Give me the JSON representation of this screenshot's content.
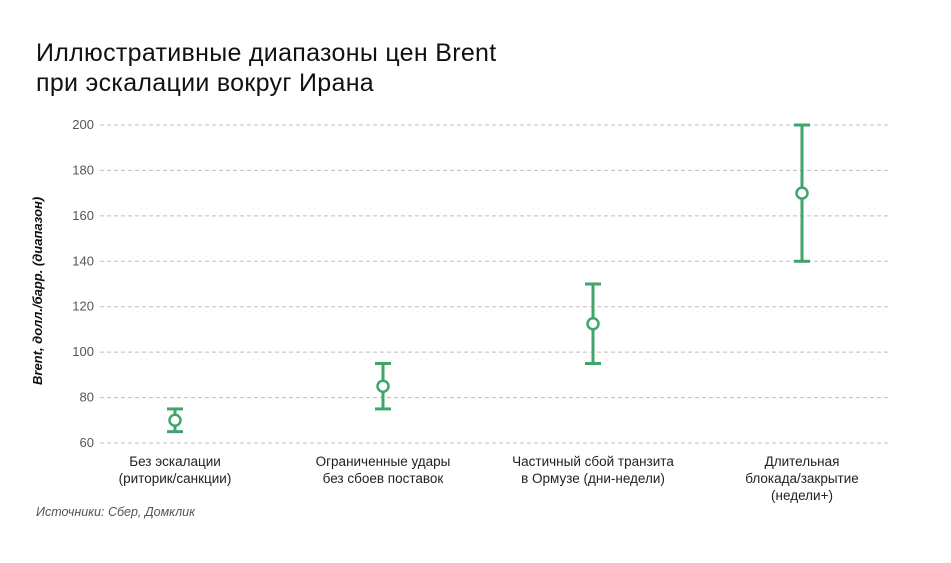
{
  "title": {
    "line1": "Иллюстративные диапазоны цен Brent",
    "line2": "при эскалации вокруг Ирана"
  },
  "ylabel": "Brent, долл./барр. (диапазон)",
  "source": "Источники: Сбер, Домклик",
  "accent_color": "#3fa66b",
  "grid_color": "#bdbdbd",
  "chart_data": {
    "type": "errorbar",
    "title": "Иллюстративные диапазоны цен Brent при эскалации вокруг Ирана",
    "xlabel": "",
    "ylabel": "Brent, долл./барр. (диапазон)",
    "ylim": [
      60,
      200
    ],
    "yticks": [
      60,
      80,
      100,
      120,
      140,
      160,
      180,
      200
    ],
    "grid": "horizontal-dashed",
    "legend": "none",
    "categories": [
      "Без эскалации (риторик/санкции)",
      "Ограниченные удары без сбоев поставок",
      "Частичный сбой транзита в Ормузе (дни-недели)",
      "Длительная блокада/закрытие (недели+)"
    ],
    "series": [
      {
        "name": "low",
        "values": [
          65,
          75,
          95,
          140
        ]
      },
      {
        "name": "mid",
        "values": [
          70,
          85,
          112.5,
          170
        ]
      },
      {
        "name": "high",
        "values": [
          75,
          95,
          130,
          200
        ]
      }
    ]
  },
  "xlabels": [
    {
      "l1": "Без эскалации",
      "l2": "(риторик/санкции)",
      "l3": ""
    },
    {
      "l1": "Ограниченные удары",
      "l2": "без сбоев поставок",
      "l3": ""
    },
    {
      "l1": "Частичный сбой транзита",
      "l2": "в Ормузе (дни-недели)",
      "l3": ""
    },
    {
      "l1": "Длительная",
      "l2": "блокада/закрытие",
      "l3": "(недели+)"
    }
  ]
}
